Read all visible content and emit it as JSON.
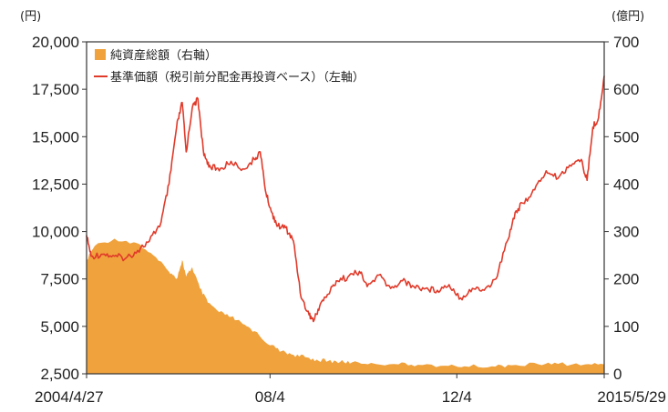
{
  "chart_data": {
    "type": "area+line",
    "title": "",
    "left_axis": {
      "unit": "(円)",
      "range": [
        2500,
        20000
      ],
      "ticks": [
        "20,000",
        "17,500",
        "15,000",
        "12,500",
        "10,000",
        "7,500",
        "5,000",
        "2,500"
      ]
    },
    "right_axis": {
      "unit": "(億円)",
      "range": [
        0,
        700
      ],
      "ticks": [
        "700",
        "600",
        "500",
        "400",
        "300",
        "200",
        "100",
        "0"
      ]
    },
    "x_ticks": [
      "2004/4/27",
      "08/4",
      "12/4",
      "2015/5/29"
    ],
    "legend": [
      {
        "label": "純資産総額（右軸）",
        "color": "#f0a23c",
        "kind": "area"
      },
      {
        "label": "基準価額（税引前分配金再投資ベース）（左軸）",
        "color": "#e03a2a",
        "kind": "line"
      }
    ],
    "legend_position": "top-left",
    "grid": false,
    "x_range": [
      "2004-04-27",
      "2015-05-29"
    ],
    "series": [
      {
        "name": "基準価額（税引前分配金再投資ベース）（左軸）",
        "axis": "left",
        "color": "#e03a2a",
        "points": [
          [
            "2004-04-27",
            9800
          ],
          [
            "2004-06-01",
            8700
          ],
          [
            "2004-09-01",
            8800
          ],
          [
            "2004-12-01",
            8700
          ],
          [
            "2005-03-01",
            8600
          ],
          [
            "2005-06-01",
            9000
          ],
          [
            "2005-09-01",
            9500
          ],
          [
            "2005-12-01",
            10500
          ],
          [
            "2006-02-01",
            12500
          ],
          [
            "2006-04-01",
            15500
          ],
          [
            "2006-05-15",
            16800
          ],
          [
            "2006-06-15",
            14200
          ],
          [
            "2006-08-01",
            16500
          ],
          [
            "2006-09-15",
            17000
          ],
          [
            "2006-11-01",
            14000
          ],
          [
            "2006-12-15",
            13500
          ],
          [
            "2007-03-01",
            13200
          ],
          [
            "2007-06-01",
            13700
          ],
          [
            "2007-09-01",
            13300
          ],
          [
            "2007-12-01",
            13800
          ],
          [
            "2008-01-15",
            14200
          ],
          [
            "2008-03-01",
            12000
          ],
          [
            "2008-04-15",
            11000
          ],
          [
            "2008-06-01",
            10300
          ],
          [
            "2008-08-01",
            10200
          ],
          [
            "2008-10-01",
            9500
          ],
          [
            "2008-12-01",
            6500
          ],
          [
            "2009-02-01",
            5600
          ],
          [
            "2009-03-10",
            5300
          ],
          [
            "2009-05-01",
            6200
          ],
          [
            "2009-07-01",
            6700
          ],
          [
            "2009-09-01",
            7400
          ],
          [
            "2009-12-01",
            7600
          ],
          [
            "2010-03-01",
            7900
          ],
          [
            "2010-05-01",
            7100
          ],
          [
            "2010-08-01",
            7700
          ],
          [
            "2010-11-01",
            7000
          ],
          [
            "2011-02-01",
            7400
          ],
          [
            "2011-05-01",
            7100
          ],
          [
            "2011-08-01",
            7000
          ],
          [
            "2011-11-01",
            6900
          ],
          [
            "2012-02-01",
            7200
          ],
          [
            "2012-05-01",
            6500
          ],
          [
            "2012-08-01",
            7000
          ],
          [
            "2012-11-01",
            6900
          ],
          [
            "2013-02-01",
            7500
          ],
          [
            "2013-05-01",
            9500
          ],
          [
            "2013-07-01",
            11000
          ],
          [
            "2013-09-01",
            11500
          ],
          [
            "2013-12-01",
            12200
          ],
          [
            "2014-03-01",
            13200
          ],
          [
            "2014-06-01",
            12800
          ],
          [
            "2014-09-01",
            13500
          ],
          [
            "2014-12-01",
            13800
          ],
          [
            "2015-01-15",
            12700
          ],
          [
            "2015-03-01",
            15500
          ],
          [
            "2015-04-15",
            16000
          ],
          [
            "2015-05-29",
            18200
          ]
        ]
      },
      {
        "name": "純資産総額（右軸）",
        "axis": "right",
        "color": "#f0a23c",
        "points": [
          [
            "2004-04-27",
            240
          ],
          [
            "2004-07-01",
            270
          ],
          [
            "2004-12-01",
            285
          ],
          [
            "2005-06-01",
            275
          ],
          [
            "2005-10-01",
            250
          ],
          [
            "2006-02-01",
            215
          ],
          [
            "2006-04-01",
            200
          ],
          [
            "2006-05-15",
            240
          ],
          [
            "2006-06-15",
            205
          ],
          [
            "2006-08-01",
            225
          ],
          [
            "2006-10-01",
            180
          ],
          [
            "2006-12-01",
            150
          ],
          [
            "2007-03-01",
            130
          ],
          [
            "2007-06-01",
            120
          ],
          [
            "2007-09-01",
            105
          ],
          [
            "2007-12-01",
            90
          ],
          [
            "2008-04-01",
            60
          ],
          [
            "2008-07-01",
            48
          ],
          [
            "2008-10-01",
            40
          ],
          [
            "2009-01-01",
            35
          ],
          [
            "2009-04-01",
            30
          ],
          [
            "2009-07-01",
            27
          ],
          [
            "2009-10-01",
            25
          ],
          [
            "2010-01-01",
            24
          ],
          [
            "2010-06-01",
            23
          ],
          [
            "2011-01-01",
            20
          ],
          [
            "2011-06-01",
            19
          ],
          [
            "2012-01-01",
            17
          ],
          [
            "2012-06-01",
            16
          ],
          [
            "2013-01-01",
            16
          ],
          [
            "2013-06-01",
            18
          ],
          [
            "2014-01-01",
            20
          ],
          [
            "2014-06-01",
            21
          ],
          [
            "2015-01-01",
            20
          ],
          [
            "2015-05-29",
            20
          ]
        ]
      }
    ]
  }
}
